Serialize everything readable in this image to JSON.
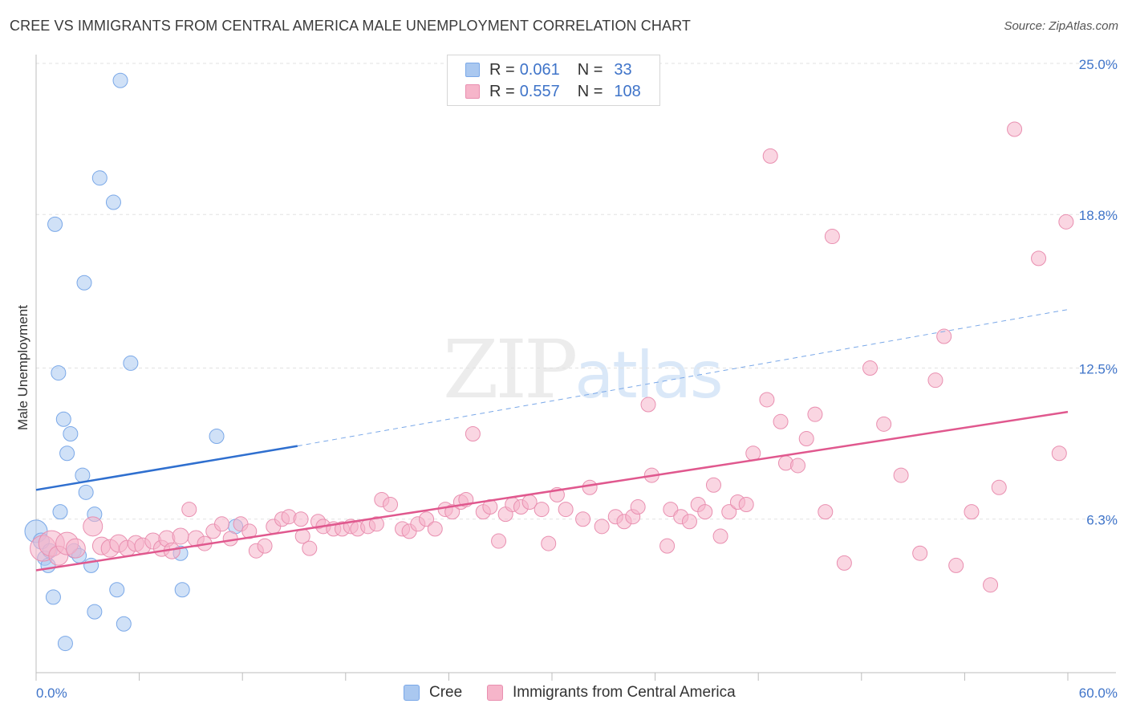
{
  "title": "CREE VS IMMIGRANTS FROM CENTRAL AMERICA MALE UNEMPLOYMENT CORRELATION CHART",
  "source": "Source: ZipAtlas.com",
  "watermark": {
    "zip": "ZIP",
    "atlas": "atlas"
  },
  "legend": {
    "rows": [
      {
        "r_label": "R =",
        "r_value": "0.061",
        "n_label": "N =",
        "n_value": "33",
        "color": "#aac8f0"
      },
      {
        "r_label": "R =",
        "r_value": "0.557",
        "n_label": "N =",
        "n_value": "108",
        "color": "#f6b5ca"
      }
    ]
  },
  "bottom_legend": [
    {
      "label": "Cree",
      "color": "#aac8f0"
    },
    {
      "label": "Immigrants from Central America",
      "color": "#f6b5ca"
    }
  ],
  "chart_data": {
    "type": "scatter",
    "xlabel": "",
    "ylabel": "Male Unemployment",
    "xlim": [
      0,
      60
    ],
    "ylim": [
      0,
      25
    ],
    "x_tick_labels": {
      "min": "0.0%",
      "max": "60.0%"
    },
    "y_ticks": [
      {
        "value": 6.3,
        "label": "6.3%"
      },
      {
        "value": 12.5,
        "label": "12.5%"
      },
      {
        "value": 18.8,
        "label": "18.8%"
      },
      {
        "value": 25.0,
        "label": "25.0%"
      }
    ],
    "grid": true,
    "series": [
      {
        "name": "Cree",
        "color": "#7aa8e8",
        "fill": "#aac8f0",
        "trend": {
          "x0": 0,
          "y0": 7.5,
          "x1": 15.2,
          "y1": 9.3,
          "dash_to_x": 60,
          "dash_to_y": 14.9,
          "color": "#2f6fcf"
        },
        "points": [
          [
            0.0,
            5.8,
            14
          ],
          [
            0.3,
            5.4,
            10
          ],
          [
            0.5,
            4.7,
            9
          ],
          [
            0.7,
            4.4,
            9
          ],
          [
            0.8,
            5.0,
            9
          ],
          [
            1.0,
            3.1,
            9
          ],
          [
            1.1,
            18.4,
            9
          ],
          [
            1.3,
            12.3,
            9
          ],
          [
            1.4,
            6.6,
            9
          ],
          [
            1.6,
            10.4,
            9
          ],
          [
            1.7,
            1.2,
            9
          ],
          [
            1.8,
            9.0,
            9
          ],
          [
            2.0,
            9.8,
            9
          ],
          [
            2.2,
            5.0,
            9
          ],
          [
            2.5,
            4.8,
            9
          ],
          [
            2.7,
            8.1,
            9
          ],
          [
            2.8,
            16.0,
            9
          ],
          [
            2.9,
            7.4,
            9
          ],
          [
            3.2,
            4.4,
            9
          ],
          [
            3.4,
            6.5,
            9
          ],
          [
            3.4,
            2.5,
            9
          ],
          [
            3.7,
            20.3,
            9
          ],
          [
            4.5,
            19.3,
            9
          ],
          [
            4.7,
            3.4,
            9
          ],
          [
            4.9,
            24.3,
            9
          ],
          [
            5.1,
            2.0,
            9
          ],
          [
            5.5,
            12.7,
            9
          ],
          [
            8.4,
            4.9,
            9
          ],
          [
            8.5,
            3.4,
            9
          ],
          [
            10.5,
            9.7,
            9
          ],
          [
            11.6,
            6.0,
            9
          ]
        ]
      },
      {
        "name": "Immigrants from Central America",
        "color": "#e98fb0",
        "fill": "#f6b5ca",
        "trend": {
          "x0": 0,
          "y0": 4.2,
          "x1": 60,
          "y1": 10.7,
          "color": "#e0588e"
        },
        "points": [
          [
            0.4,
            5.1,
            16
          ],
          [
            0.9,
            5.3,
            16
          ],
          [
            1.3,
            4.8,
            12
          ],
          [
            1.8,
            5.3,
            14
          ],
          [
            2.3,
            5.1,
            12
          ],
          [
            3.3,
            6.0,
            12
          ],
          [
            3.8,
            5.2,
            11
          ],
          [
            4.3,
            5.1,
            11
          ],
          [
            4.8,
            5.3,
            11
          ],
          [
            5.3,
            5.1,
            10
          ],
          [
            5.8,
            5.3,
            10
          ],
          [
            6.2,
            5.2,
            10
          ],
          [
            6.8,
            5.4,
            10
          ],
          [
            7.3,
            5.1,
            10
          ],
          [
            7.6,
            5.5,
            10
          ],
          [
            7.9,
            5.0,
            10
          ],
          [
            8.4,
            5.6,
            10
          ],
          [
            8.9,
            6.7,
            9
          ],
          [
            9.3,
            5.5,
            10
          ],
          [
            9.8,
            5.3,
            9
          ],
          [
            10.3,
            5.8,
            9
          ],
          [
            10.8,
            6.1,
            9
          ],
          [
            11.3,
            5.5,
            9
          ],
          [
            11.9,
            6.1,
            9
          ],
          [
            12.4,
            5.8,
            9
          ],
          [
            12.8,
            5.0,
            9
          ],
          [
            13.3,
            5.2,
            9
          ],
          [
            13.8,
            6.0,
            9
          ],
          [
            14.3,
            6.3,
            9
          ],
          [
            14.7,
            6.4,
            9
          ],
          [
            15.4,
            6.3,
            9
          ],
          [
            15.5,
            5.6,
            9
          ],
          [
            15.9,
            5.1,
            9
          ],
          [
            16.4,
            6.2,
            9
          ],
          [
            16.7,
            6.0,
            9
          ],
          [
            17.3,
            5.9,
            9
          ],
          [
            17.8,
            5.9,
            9
          ],
          [
            18.3,
            6.0,
            9
          ],
          [
            18.7,
            5.9,
            9
          ],
          [
            19.3,
            6.0,
            9
          ],
          [
            19.8,
            6.1,
            9
          ],
          [
            20.1,
            7.1,
            9
          ],
          [
            20.6,
            6.9,
            9
          ],
          [
            21.3,
            5.9,
            9
          ],
          [
            21.7,
            5.8,
            9
          ],
          [
            22.2,
            6.1,
            9
          ],
          [
            22.7,
            6.3,
            9
          ],
          [
            23.2,
            5.9,
            9
          ],
          [
            23.8,
            6.7,
            9
          ],
          [
            24.2,
            6.6,
            9
          ],
          [
            24.7,
            7.0,
            9
          ],
          [
            25.0,
            7.1,
            9
          ],
          [
            25.4,
            9.8,
            9
          ],
          [
            26.0,
            6.6,
            9
          ],
          [
            26.4,
            6.8,
            9
          ],
          [
            26.9,
            5.4,
            9
          ],
          [
            27.3,
            6.5,
            9
          ],
          [
            27.7,
            6.9,
            9
          ],
          [
            28.2,
            6.8,
            9
          ],
          [
            28.7,
            7.0,
            9
          ],
          [
            29.4,
            6.7,
            9
          ],
          [
            29.8,
            5.3,
            9
          ],
          [
            30.3,
            7.3,
            9
          ],
          [
            30.8,
            6.7,
            9
          ],
          [
            31.8,
            6.3,
            9
          ],
          [
            32.2,
            7.6,
            9
          ],
          [
            32.9,
            6.0,
            9
          ],
          [
            33.7,
            6.4,
            9
          ],
          [
            34.2,
            6.2,
            9
          ],
          [
            34.7,
            6.4,
            9
          ],
          [
            35.0,
            6.8,
            9
          ],
          [
            35.6,
            11.0,
            9
          ],
          [
            35.8,
            8.1,
            9
          ],
          [
            36.7,
            5.2,
            9
          ],
          [
            36.9,
            6.7,
            9
          ],
          [
            37.5,
            6.4,
            9
          ],
          [
            38.0,
            6.2,
            9
          ],
          [
            38.5,
            6.9,
            9
          ],
          [
            38.9,
            6.6,
            9
          ],
          [
            39.4,
            7.7,
            9
          ],
          [
            39.8,
            5.6,
            9
          ],
          [
            40.3,
            6.6,
            9
          ],
          [
            40.8,
            7.0,
            9
          ],
          [
            41.3,
            6.9,
            9
          ],
          [
            41.7,
            9.0,
            9
          ],
          [
            42.5,
            11.2,
            9
          ],
          [
            42.7,
            21.2,
            9
          ],
          [
            43.3,
            10.3,
            9
          ],
          [
            43.6,
            8.6,
            9
          ],
          [
            44.3,
            8.5,
            9
          ],
          [
            44.8,
            9.6,
            9
          ],
          [
            45.3,
            10.6,
            9
          ],
          [
            45.9,
            6.6,
            9
          ],
          [
            46.3,
            17.9,
            9
          ],
          [
            47.0,
            4.5,
            9
          ],
          [
            48.5,
            12.5,
            9
          ],
          [
            49.3,
            10.2,
            9
          ],
          [
            50.3,
            8.1,
            9
          ],
          [
            51.4,
            4.9,
            9
          ],
          [
            52.3,
            12.0,
            9
          ],
          [
            52.8,
            13.8,
            9
          ],
          [
            53.5,
            4.4,
            9
          ],
          [
            54.4,
            6.6,
            9
          ],
          [
            55.5,
            3.6,
            9
          ],
          [
            56.0,
            7.6,
            9
          ],
          [
            56.9,
            22.3,
            9
          ],
          [
            58.3,
            17.0,
            9
          ],
          [
            59.5,
            9.0,
            9
          ],
          [
            59.9,
            18.5,
            9
          ]
        ]
      }
    ]
  }
}
